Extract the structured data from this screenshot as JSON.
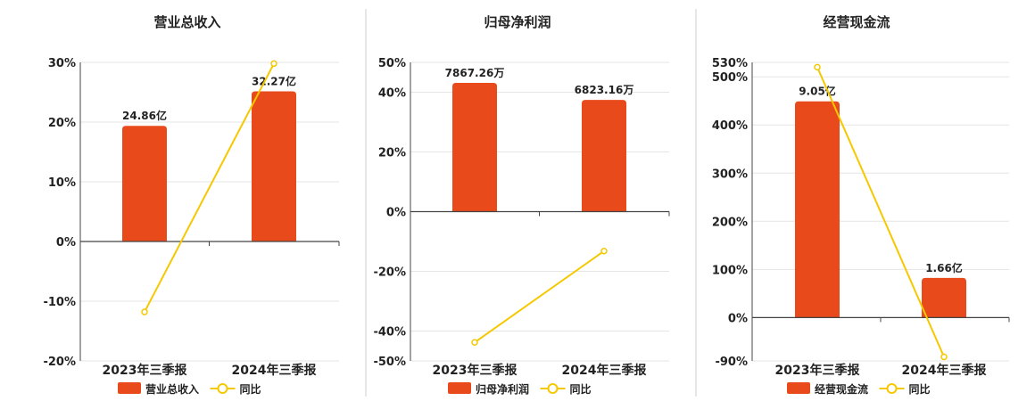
{
  "colors": {
    "bar": "#e84a1c",
    "line": "#f5c800",
    "grid": "#e6e6e6",
    "axis": "#444444",
    "text": "#222222",
    "divider": "#cccccc"
  },
  "legend_yoy_label": "同比",
  "chart_data": [
    {
      "type": "bar",
      "title": "营业总收入",
      "categories": [
        "2023年三季报",
        "2024年三季报"
      ],
      "series": [
        {
          "name": "营业总收入",
          "type": "bar",
          "axis": "right",
          "values": [
            24.86,
            32.27
          ],
          "value_labels": [
            "24.86亿",
            "32.27亿"
          ]
        },
        {
          "name": "同比",
          "type": "line",
          "axis": "left",
          "values": [
            -11.8,
            29.8
          ]
        }
      ],
      "y_ticks": [
        {
          "value": 30,
          "label": "30%"
        },
        {
          "value": 20,
          "label": "20%"
        },
        {
          "value": 10,
          "label": "10%"
        },
        {
          "value": 0,
          "label": "0%"
        },
        {
          "value": -10,
          "label": "-10%"
        },
        {
          "value": -20,
          "label": "-20%"
        }
      ],
      "ylim": [
        -20,
        30
      ],
      "bar_ylim": [
        0,
        38.5
      ],
      "grid": true,
      "legend_position": "bottom"
    },
    {
      "type": "bar",
      "title": "归母净利润",
      "categories": [
        "2023年三季报",
        "2024年三季报"
      ],
      "series": [
        {
          "name": "归母净利润",
          "type": "bar",
          "axis": "right",
          "values": [
            7867.26,
            6823.16
          ],
          "value_labels": [
            "7867.26万",
            "6823.16万"
          ]
        },
        {
          "name": "同比",
          "type": "line",
          "axis": "left",
          "values": [
            -43.8,
            -13.2
          ]
        }
      ],
      "y_ticks": [
        {
          "value": 50,
          "label": "50%"
        },
        {
          "value": 40,
          "label": "40%"
        },
        {
          "value": 20,
          "label": "20%"
        },
        {
          "value": 0,
          "label": "0%"
        },
        {
          "value": -20,
          "label": "-20%"
        },
        {
          "value": -40,
          "label": "-40%"
        },
        {
          "value": -50,
          "label": "-50%"
        }
      ],
      "ylim": [
        -50,
        50
      ],
      "bar_ylim": [
        0,
        9120
      ],
      "grid": true,
      "legend_position": "bottom"
    },
    {
      "type": "bar",
      "title": "经营现金流",
      "categories": [
        "2023年三季报",
        "2024年三季报"
      ],
      "series": [
        {
          "name": "经营现金流",
          "type": "bar",
          "axis": "right",
          "values": [
            9.05,
            1.66
          ],
          "value_labels": [
            "9.05亿",
            "1.66亿"
          ]
        },
        {
          "name": "同比",
          "type": "line",
          "axis": "left",
          "values": [
            520,
            -81.6
          ]
        }
      ],
      "y_ticks": [
        {
          "value": 530,
          "label": "530%"
        },
        {
          "value": 500,
          "label": "500%"
        },
        {
          "value": 400,
          "label": "400%"
        },
        {
          "value": 300,
          "label": "300%"
        },
        {
          "value": 200,
          "label": "200%"
        },
        {
          "value": 100,
          "label": "100%"
        },
        {
          "value": 0,
          "label": "0%"
        },
        {
          "value": -90,
          "label": "-90%"
        }
      ],
      "ylim": [
        -90,
        530
      ],
      "bar_ylim": [
        0,
        10.68
      ],
      "grid": true,
      "legend_position": "bottom"
    }
  ]
}
